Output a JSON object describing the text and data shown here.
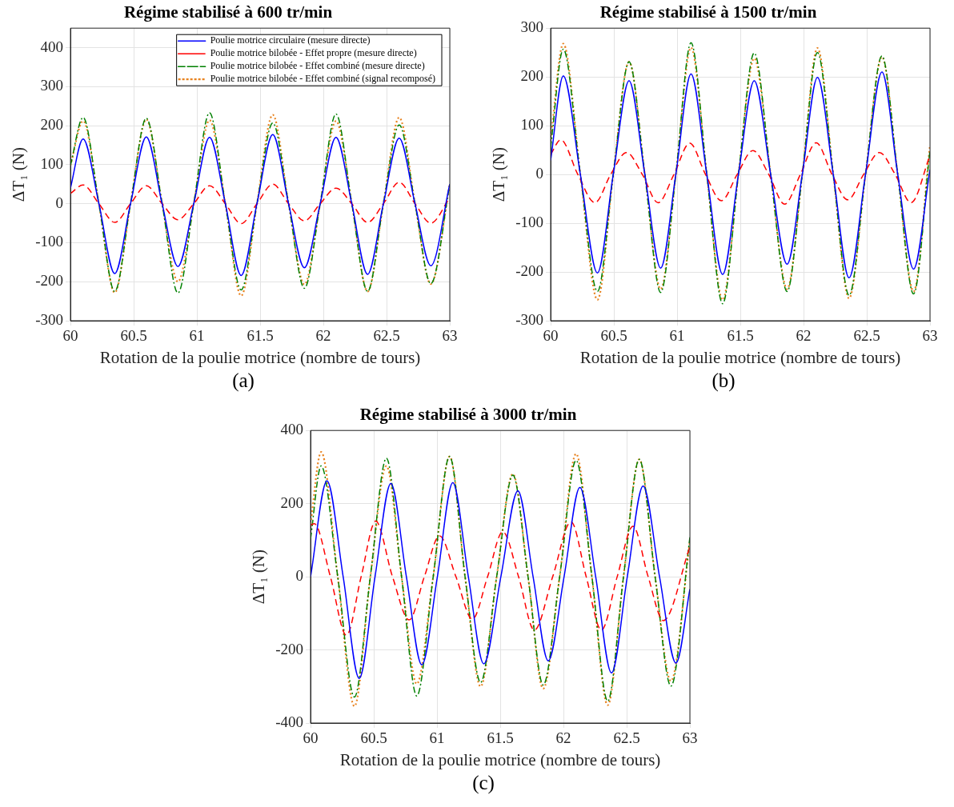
{
  "chart_data": [
    {
      "type": "line",
      "title": "Régime stabilisé à 600 tr/min",
      "xlabel": "Rotation de la poulie motrice (nombre de tours)",
      "ylabel": "ΔT₁ (N)",
      "annotations": [
        "(a)"
      ],
      "xlim": [
        60,
        63
      ],
      "xticks": [
        60,
        60.5,
        61,
        61.5,
        62,
        62.5,
        63
      ],
      "ylim": [
        -300,
        450
      ],
      "yticks": [
        -300,
        -200,
        -100,
        0,
        100,
        200,
        300,
        400
      ],
      "grid": true,
      "legend": "top right",
      "marker": "none",
      "series": [
        {
          "name": "Poulie motrice circulaire (mesure directe)",
          "color": "#0000ff",
          "line_style": "solid",
          "x": [
            60,
            60.1,
            60.225,
            60.35,
            60.475,
            60.6,
            60.725,
            60.85,
            60.975,
            61.1,
            61.225,
            61.35,
            61.475,
            61.6,
            61.725,
            61.85,
            61.975,
            62.1,
            62.225,
            62.35,
            62.475,
            62.6,
            62.725,
            62.85,
            63
          ],
          "values": [
            40,
            166,
            0,
            -179,
            0,
            171,
            0,
            -161,
            0,
            170,
            0,
            -184,
            0,
            177,
            0,
            -164,
            0,
            170,
            0,
            -181,
            0,
            168,
            0,
            -159,
            50
          ]
        },
        {
          "name": "Poulie motrice bilobée - Effet propre (mesure directe)",
          "color": "#ff0000",
          "line_style": "dashed",
          "x": [
            60,
            60.1,
            60.225,
            60.35,
            60.475,
            60.6,
            60.725,
            60.85,
            60.975,
            61.1,
            61.225,
            61.35,
            61.475,
            61.6,
            61.725,
            61.85,
            61.975,
            62.1,
            62.225,
            62.35,
            62.475,
            62.6,
            62.725,
            62.85,
            63
          ],
          "values": [
            26,
            48,
            0,
            -48,
            0,
            46,
            0,
            -41,
            0,
            46,
            0,
            -51,
            0,
            50,
            0,
            -44,
            0,
            40,
            0,
            -48,
            0,
            55,
            0,
            -50,
            16
          ]
        },
        {
          "name": "Poulie motrice bilobée - Effet combiné (mesure directe)",
          "color": "#008000",
          "line_style": "dashdot",
          "x": [
            60,
            60.1,
            60.225,
            60.35,
            60.475,
            60.6,
            60.725,
            60.85,
            60.975,
            61.1,
            61.225,
            61.35,
            61.475,
            61.6,
            61.725,
            61.85,
            61.975,
            62.1,
            62.225,
            62.35,
            62.475,
            62.6,
            62.725,
            62.85,
            63
          ],
          "values": [
            98,
            221,
            0,
            -225,
            0,
            219,
            0,
            -229,
            0,
            233,
            0,
            -221,
            0,
            207,
            0,
            -217,
            0,
            230,
            0,
            -225,
            0,
            202,
            0,
            -205,
            50
          ]
        },
        {
          "name": "Poulie motrice bilobée - Effet combiné (signal recomposé)",
          "color": "#e8821e",
          "line_style": "dotted",
          "x": [
            60,
            60.1,
            60.225,
            60.35,
            60.475,
            60.6,
            60.725,
            60.85,
            60.975,
            61.1,
            61.225,
            61.35,
            61.475,
            61.6,
            61.725,
            61.85,
            61.975,
            62.1,
            62.225,
            62.35,
            62.475,
            62.6,
            62.725,
            62.85,
            63
          ],
          "values": [
            98,
            212,
            0,
            -228,
            0,
            216,
            0,
            -200,
            0,
            214,
            0,
            -236,
            0,
            228,
            0,
            -207,
            0,
            212,
            0,
            -225,
            0,
            221,
            0,
            -206,
            50
          ]
        }
      ]
    },
    {
      "type": "line",
      "title": "Régime stabilisé à 1500 tr/min",
      "xlabel": "Rotation de la poulie motrice (nombre de tours)",
      "ylabel": "ΔT₁ (N)",
      "annotations": [
        "(b)"
      ],
      "xlim": [
        60,
        63
      ],
      "xticks": [
        60,
        60.5,
        61,
        61.5,
        62,
        62.5,
        63
      ],
      "ylim": [
        -300,
        300
      ],
      "yticks": [
        -300,
        -200,
        -100,
        0,
        100,
        200,
        300
      ],
      "grid": true,
      "marker": "none",
      "series": [
        {
          "color": "#0000ff",
          "line_style": "solid",
          "x": [
            60,
            60.1,
            60.235,
            60.37,
            60.495,
            60.62,
            60.745,
            60.87,
            60.99,
            61.11,
            61.235,
            61.36,
            61.485,
            61.61,
            61.74,
            61.87,
            61.99,
            62.11,
            62.235,
            62.36,
            62.49,
            62.62,
            62.745,
            62.87,
            63
          ],
          "values": [
            29,
            202,
            0,
            -202,
            0,
            192,
            0,
            -192,
            0,
            206,
            0,
            -205,
            0,
            192,
            0,
            -184,
            0,
            199,
            0,
            -212,
            0,
            210,
            0,
            -194,
            10
          ]
        },
        {
          "color": "#ff0000",
          "line_style": "dashed",
          "x": [
            60,
            60.08,
            60.215,
            60.35,
            60.475,
            60.6,
            60.725,
            60.85,
            60.975,
            61.1,
            61.225,
            61.35,
            61.475,
            61.6,
            61.725,
            61.85,
            61.975,
            62.1,
            62.225,
            62.35,
            62.475,
            62.6,
            62.725,
            62.85,
            63
          ],
          "values": [
            41,
            71,
            0,
            -58,
            0,
            45,
            0,
            -58,
            0,
            64,
            0,
            -54,
            0,
            49,
            0,
            -61,
            0,
            65,
            0,
            -52,
            0,
            45,
            0,
            -58,
            39
          ]
        },
        {
          "color": "#008000",
          "line_style": "dashdot",
          "x": [
            60,
            60.1,
            60.235,
            60.37,
            60.495,
            60.62,
            60.745,
            60.87,
            60.99,
            61.11,
            61.235,
            61.36,
            61.485,
            61.61,
            61.74,
            61.87,
            61.99,
            62.11,
            62.235,
            62.36,
            62.49,
            62.62,
            62.745,
            62.87,
            63
          ],
          "values": [
            55,
            257,
            0,
            -240,
            0,
            231,
            0,
            -242,
            0,
            270,
            0,
            -265,
            0,
            249,
            0,
            -240,
            0,
            250,
            0,
            -248,
            0,
            243,
            0,
            -245,
            50
          ]
        },
        {
          "color": "#e8821e",
          "line_style": "dotted",
          "x": [
            60,
            60.1,
            60.235,
            60.37,
            60.495,
            60.62,
            60.745,
            60.87,
            60.99,
            61.11,
            61.235,
            61.36,
            61.485,
            61.61,
            61.74,
            61.87,
            61.99,
            62.11,
            62.235,
            62.36,
            62.49,
            62.62,
            62.745,
            62.87,
            63
          ],
          "values": [
            72,
            268,
            0,
            -257,
            0,
            231,
            0,
            -235,
            0,
            260,
            0,
            -257,
            0,
            238,
            0,
            -235,
            0,
            259,
            0,
            -254,
            0,
            241,
            0,
            -240,
            60
          ]
        }
      ]
    },
    {
      "type": "line",
      "title": "Régime stabilisé à 3000 tr/min",
      "xlabel": "Rotation de la poulie motrice (nombre de tours)",
      "ylabel": "ΔT₁ (N)",
      "annotations": [
        "(c)"
      ],
      "xlim": [
        60,
        63
      ],
      "xticks": [
        60,
        60.5,
        61,
        61.5,
        62,
        62.5,
        63
      ],
      "ylim": [
        -400,
        400
      ],
      "yticks": [
        -400,
        -200,
        0,
        200,
        400
      ],
      "grid": true,
      "marker": "none",
      "series": [
        {
          "color": "#0000ff",
          "line_style": "solid",
          "x": [
            60,
            60.13,
            60.258,
            60.385,
            60.51,
            60.635,
            60.758,
            60.88,
            61.003,
            61.125,
            61.248,
            61.37,
            61.505,
            61.64,
            61.76,
            61.88,
            62.005,
            62.13,
            62.255,
            62.38,
            62.505,
            62.63,
            62.76,
            62.89,
            63
          ],
          "values": [
            0,
            262,
            0,
            -278,
            0,
            255,
            0,
            -241,
            0,
            257,
            0,
            -238,
            0,
            235,
            0,
            -230,
            0,
            244,
            0,
            -263,
            0,
            248,
            0,
            -236,
            -34
          ]
        },
        {
          "color": "#ff0000",
          "line_style": "dashed",
          "x": [
            60,
            60.03,
            60.157,
            60.284,
            60.4,
            60.515,
            60.648,
            60.78,
            60.9,
            61.02,
            61.15,
            61.28,
            61.4,
            61.52,
            61.645,
            61.77,
            61.915,
            62.06,
            62.18,
            62.3,
            62.425,
            62.55,
            62.67,
            62.79,
            63
          ],
          "values": [
            141,
            145,
            0,
            -160,
            0,
            152,
            0,
            -118,
            0,
            112,
            0,
            -116,
            0,
            123,
            0,
            -146,
            0,
            150,
            0,
            -146,
            0,
            138,
            0,
            -120,
            82
          ]
        },
        {
          "color": "#008000",
          "line_style": "dashdot",
          "x": [
            60,
            60.084,
            60.215,
            60.347,
            60.473,
            60.6,
            60.72,
            60.84,
            60.97,
            61.1,
            61.222,
            61.345,
            61.472,
            61.6,
            61.72,
            61.84,
            61.97,
            62.1,
            62.225,
            62.35,
            62.475,
            62.6,
            62.725,
            62.85,
            63
          ],
          "values": [
            104,
            303,
            0,
            -329,
            0,
            324,
            0,
            -326,
            0,
            329,
            0,
            -289,
            0,
            278,
            0,
            -296,
            0,
            318,
            0,
            -340,
            0,
            321,
            0,
            -299,
            108
          ]
        },
        {
          "color": "#e8821e",
          "line_style": "dotted",
          "x": [
            60,
            60.084,
            60.215,
            60.347,
            60.473,
            60.6,
            60.72,
            60.84,
            60.97,
            61.1,
            61.222,
            61.345,
            61.472,
            61.6,
            61.72,
            61.84,
            61.97,
            62.1,
            62.225,
            62.35,
            62.475,
            62.6,
            62.725,
            62.85,
            63
          ],
          "values": [
            145,
            341,
            0,
            -354,
            0,
            303,
            0,
            -293,
            0,
            329,
            0,
            -300,
            0,
            281,
            0,
            -306,
            0,
            336,
            0,
            -351,
            0,
            321,
            0,
            -285,
            97
          ]
        }
      ]
    }
  ]
}
